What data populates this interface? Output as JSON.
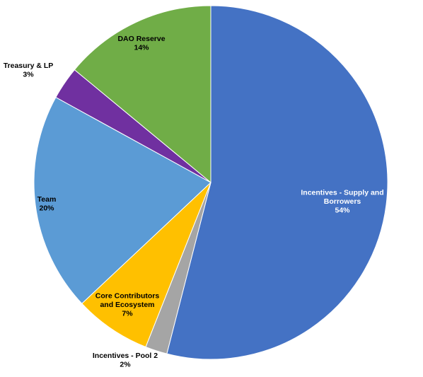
{
  "chart_data": {
    "type": "pie",
    "start_angle_deg": 0,
    "direction": "clockwise",
    "slices": [
      {
        "name": "Incentives - Supply and Borrowers",
        "lines": [
          "Incentives - Supply and",
          "Borrowers"
        ],
        "value": 54,
        "pct_label": "54%",
        "color": "#4472C4",
        "text_color": "#FFFFFF"
      },
      {
        "name": "Incentives - Pool 2",
        "lines": [
          "Incentives - Pool 2"
        ],
        "value": 2,
        "pct_label": "2%",
        "color": "#A5A5A5",
        "text_color": "#000000"
      },
      {
        "name": "Core Contributors and Ecosystem",
        "lines": [
          "Core Contributors",
          "and Ecosystem"
        ],
        "value": 7,
        "pct_label": "7%",
        "color": "#FFC000",
        "text_color": "#000000"
      },
      {
        "name": "Team",
        "lines": [
          "Team"
        ],
        "value": 20,
        "pct_label": "20%",
        "color": "#5B9BD5",
        "text_color": "#000000"
      },
      {
        "name": "Treasury & LP",
        "lines": [
          "Treasury & LP"
        ],
        "value": 3,
        "pct_label": "3%",
        "color": "#7030A0",
        "text_color": "#000000"
      },
      {
        "name": "DAO Reserve",
        "lines": [
          "DAO Reserve"
        ],
        "value": 14,
        "pct_label": "14%",
        "color": "#70AD47",
        "text_color": "#000000"
      }
    ]
  }
}
